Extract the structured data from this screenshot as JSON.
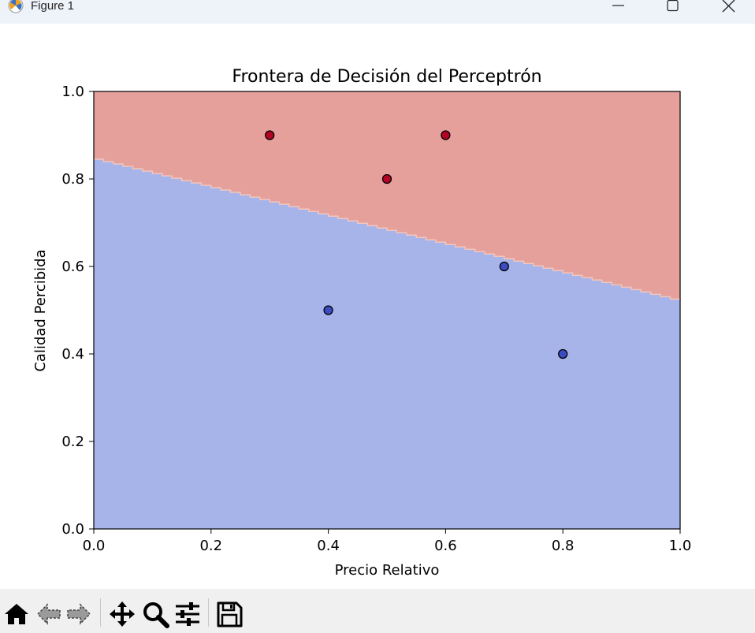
{
  "window": {
    "title": "Figure 1",
    "icon": "matplotlib-logo-icon",
    "controls": [
      "minimize-icon",
      "maximize-icon",
      "close-icon"
    ]
  },
  "toolbar": {
    "buttons": [
      "home-icon",
      "back-icon",
      "forward-icon",
      "pan-icon",
      "zoom-icon",
      "configure-subplots-icon",
      "save-icon"
    ]
  },
  "chart_data": {
    "type": "scatter",
    "title": "Frontera de Decisión del Perceptrón",
    "xlabel": "Precio Relativo",
    "ylabel": "Calidad Percibida",
    "xlim": [
      0.0,
      1.0
    ],
    "ylim": [
      0.0,
      1.0
    ],
    "xticks": [
      "0.0",
      "0.2",
      "0.4",
      "0.6",
      "0.8",
      "1.0"
    ],
    "yticks": [
      "0.0",
      "0.2",
      "0.4",
      "0.6",
      "0.8",
      "1.0"
    ],
    "grid": false,
    "decision_boundary": {
      "y_at_x0": 0.845,
      "y_at_x1": 0.52,
      "class_above_color": "#e5a09b",
      "class_below_color": "#a7b4ea"
    },
    "points": [
      {
        "x": 0.3,
        "y": 0.9,
        "class": 1
      },
      {
        "x": 0.5,
        "y": 0.8,
        "class": 1
      },
      {
        "x": 0.6,
        "y": 0.9,
        "class": 1
      },
      {
        "x": 0.4,
        "y": 0.5,
        "class": 0
      },
      {
        "x": 0.7,
        "y": 0.6,
        "class": 0
      },
      {
        "x": 0.8,
        "y": 0.4,
        "class": 0
      }
    ],
    "class_colors": {
      "0": "#3b4cc0",
      "1": "#b40426"
    }
  }
}
